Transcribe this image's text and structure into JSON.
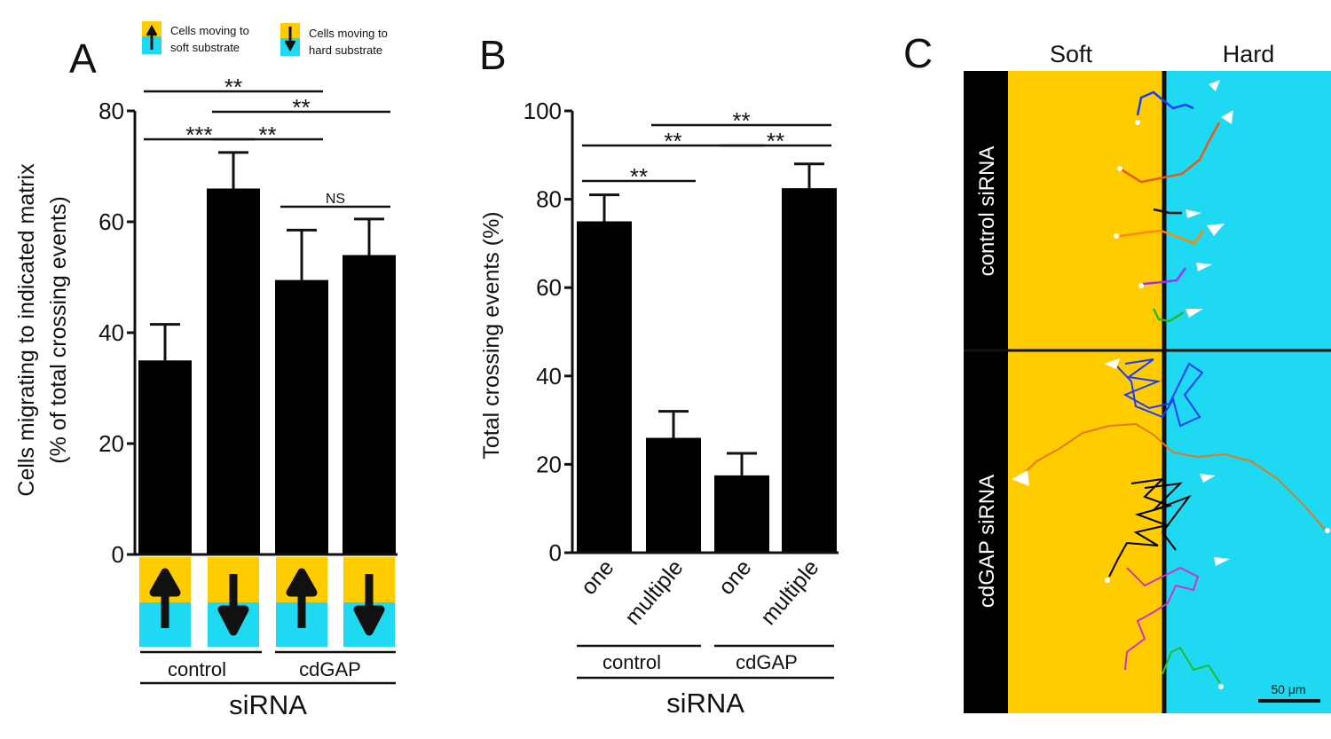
{
  "colors": {
    "soft": "#FFCC00",
    "hard": "#1FD9F2",
    "bar": "#000000"
  },
  "legend": {
    "soft_label_line1": "Cells moving to",
    "soft_label_line2": "soft substrate",
    "hard_label_line1": "Cells moving to",
    "hard_label_line2": "hard substrate"
  },
  "chart_data": [
    {
      "panel": "A",
      "type": "bar",
      "title": "",
      "ylabel_line1": "Cells migrating to indicated matrix",
      "ylabel_line2": "(% of total crossing events)",
      "ylim": [
        0,
        80
      ],
      "yticks": [
        "0",
        "20",
        "40",
        "60",
        "80"
      ],
      "ytick_values": [
        0,
        20,
        40,
        60,
        80
      ],
      "categories": [
        "control soft",
        "control hard",
        "cdGAP soft",
        "cdGAP hard"
      ],
      "directions": [
        "up",
        "down",
        "up",
        "down"
      ],
      "values": [
        35,
        66,
        49.5,
        54
      ],
      "errors": [
        6.5,
        6.5,
        9,
        6.5
      ],
      "group_labels": [
        "control",
        "cdGAP"
      ],
      "xlabel": "siRNA",
      "significance": [
        {
          "from": 0,
          "to": 2,
          "label": "**"
        },
        {
          "from": 1,
          "to": 3,
          "label": "**"
        },
        {
          "from": 0,
          "to": 1,
          "label": "***"
        },
        {
          "from": 1,
          "to": 2,
          "label": "**"
        },
        {
          "from": 2,
          "to": 3,
          "label": "NS"
        }
      ]
    },
    {
      "panel": "B",
      "type": "bar",
      "title": "",
      "ylabel": "Total crossing events (%)",
      "ylim": [
        0,
        100
      ],
      "yticks": [
        "0",
        "20",
        "40",
        "60",
        "80",
        "100"
      ],
      "ytick_values": [
        0,
        20,
        40,
        60,
        80,
        100
      ],
      "categories": [
        "one",
        "multiple",
        "one",
        "multiple"
      ],
      "values": [
        75,
        26,
        17.5,
        82.5
      ],
      "errors": [
        6,
        6,
        5,
        5.5
      ],
      "group_labels": [
        "control",
        "cdGAP"
      ],
      "xlabel": "siRNA",
      "significance": [
        {
          "from": 1,
          "to": 3,
          "label": "**"
        },
        {
          "from": 0,
          "to": 2,
          "label": "**"
        },
        {
          "from": 2,
          "to": 3,
          "label": "**"
        },
        {
          "from": 0,
          "to": 1,
          "label": "**"
        }
      ]
    }
  ],
  "panel_labels": {
    "a": "A",
    "b": "B",
    "c": "C"
  },
  "panel_c": {
    "soft_label": "Soft",
    "hard_label": "Hard",
    "row_labels": [
      "control siRNA",
      "cdGAP siRNA"
    ],
    "scale_bar": "50 μm",
    "track_colors": [
      "#1a3cff",
      "#ff2a2a",
      "#000000",
      "#ff8800",
      "#9b30ff",
      "#22bb22",
      "#cc33cc",
      "#e8591a"
    ]
  }
}
